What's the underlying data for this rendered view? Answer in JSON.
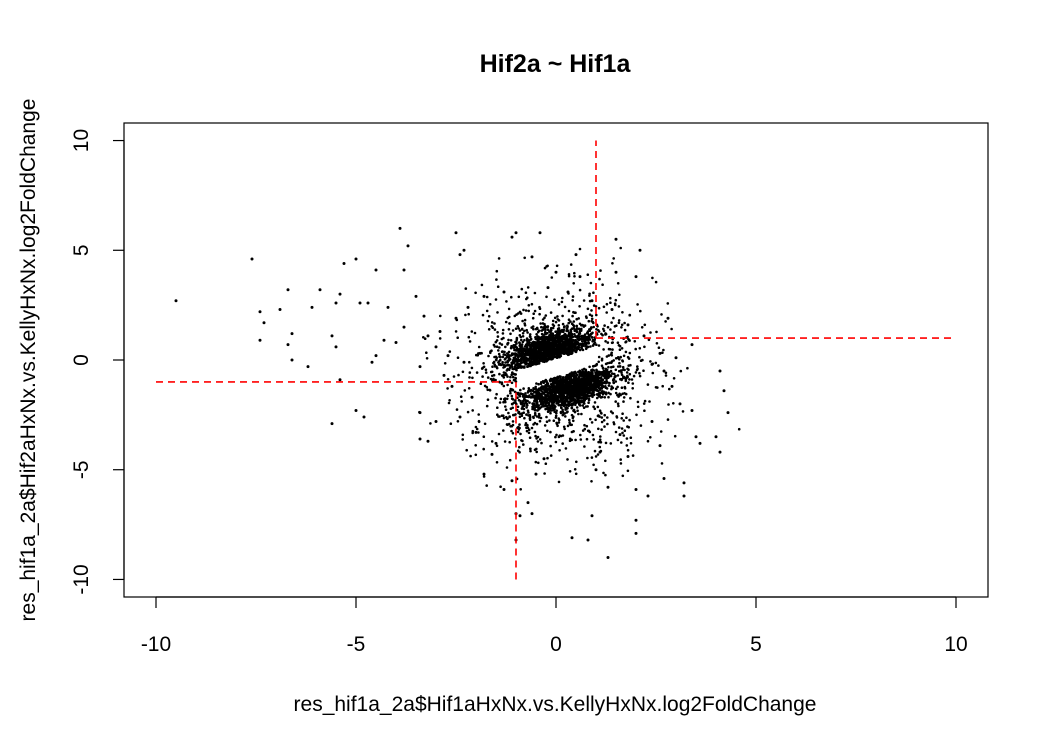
{
  "chart_data": {
    "type": "scatter",
    "title": "Hif2a ~ Hif1a",
    "xlabel": "res_hif1a_2a$Hif1aHxNx.vs.KellyHxNx.log2FoldChange",
    "ylabel": "res_hif1a_2a$Hif2aHxNx.vs.KellyHxNx.log2FoldChange",
    "xlim": [
      -10.8,
      10.8
    ],
    "ylim": [
      -10.8,
      10.8
    ],
    "x_ticks": [
      {
        "value": -10,
        "label": "-10"
      },
      {
        "value": -5,
        "label": "-5"
      },
      {
        "value": 0,
        "label": "0"
      },
      {
        "value": 5,
        "label": "5"
      },
      {
        "value": 10,
        "label": "10"
      }
    ],
    "y_ticks": [
      {
        "value": -10,
        "label": "-10"
      },
      {
        "value": -5,
        "label": "-5"
      },
      {
        "value": 0,
        "label": "0"
      },
      {
        "value": 5,
        "label": "5"
      },
      {
        "value": 10,
        "label": "10"
      }
    ],
    "grid": false,
    "point_color": "#000000",
    "reference_line_color": "#ff0000",
    "reference_lines": [
      {
        "name": "hline-upper",
        "orientation": "horizontal",
        "value": 1,
        "from": 1,
        "to": 10
      },
      {
        "name": "hline-lower",
        "orientation": "horizontal",
        "value": -1,
        "from": -10,
        "to": -1
      },
      {
        "name": "vline-right",
        "orientation": "vertical",
        "value": 1,
        "from": 1,
        "to": 10
      },
      {
        "name": "vline-left",
        "orientation": "vertical",
        "value": -1,
        "from": -10,
        "to": -1
      }
    ],
    "clusters": [
      {
        "name": "upper-band",
        "n": 1400,
        "cx": -0.2,
        "cy": 0.5,
        "sx": 0.55,
        "sy": 0.4,
        "slope": 0.5
      },
      {
        "name": "lower-band",
        "n": 1400,
        "cx": 0.35,
        "cy": -1.3,
        "sx": 0.55,
        "sy": 0.4,
        "slope": 0.5
      },
      {
        "name": "wide-cloud",
        "n": 1200,
        "cx": 0.1,
        "cy": -0.6,
        "sx": 1.2,
        "sy": 1.9,
        "slope": 0
      }
    ],
    "points": [
      {
        "x": -9.5,
        "y": 2.7
      },
      {
        "x": -7.6,
        "y": 4.6
      },
      {
        "x": -7.4,
        "y": 2.2
      },
      {
        "x": -7.3,
        "y": 1.7
      },
      {
        "x": -7.4,
        "y": 0.9
      },
      {
        "x": -6.9,
        "y": 2.3
      },
      {
        "x": -6.7,
        "y": 3.2
      },
      {
        "x": -6.6,
        "y": 1.2
      },
      {
        "x": -6.7,
        "y": 0.7
      },
      {
        "x": -6.6,
        "y": 0.0
      },
      {
        "x": -6.2,
        "y": -0.3
      },
      {
        "x": -6.1,
        "y": 2.4
      },
      {
        "x": -5.9,
        "y": 3.2
      },
      {
        "x": -5.5,
        "y": 2.6
      },
      {
        "x": -5.4,
        "y": 3.0
      },
      {
        "x": -5.3,
        "y": 4.4
      },
      {
        "x": -5.0,
        "y": 4.6
      },
      {
        "x": -4.9,
        "y": 2.6
      },
      {
        "x": -4.7,
        "y": 2.6
      },
      {
        "x": -4.5,
        "y": 4.1
      },
      {
        "x": -4.3,
        "y": 0.9
      },
      {
        "x": -4.5,
        "y": 0.2
      },
      {
        "x": -4.6,
        "y": -0.1
      },
      {
        "x": -5.6,
        "y": 1.1
      },
      {
        "x": -5.5,
        "y": 0.6
      },
      {
        "x": -5.0,
        "y": -2.3
      },
      {
        "x": -5.6,
        "y": -2.9
      },
      {
        "x": -4.8,
        "y": -2.6
      },
      {
        "x": -5.4,
        "y": -0.9
      },
      {
        "x": -4.2,
        "y": 2.4
      },
      {
        "x": -3.9,
        "y": 6.0
      },
      {
        "x": -3.7,
        "y": 5.2
      },
      {
        "x": -3.8,
        "y": 4.1
      },
      {
        "x": -3.5,
        "y": 2.9
      },
      {
        "x": -3.3,
        "y": 2.0
      },
      {
        "x": -3.4,
        "y": -2.4
      },
      {
        "x": -3.4,
        "y": -3.6
      },
      {
        "x": -3.2,
        "y": -3.7
      },
      {
        "x": -3.0,
        "y": -2.8
      },
      {
        "x": -2.5,
        "y": 5.8
      },
      {
        "x": -2.4,
        "y": 4.8
      },
      {
        "x": -2.3,
        "y": 5.0
      },
      {
        "x": -1.1,
        "y": 5.6
      },
      {
        "x": -1.0,
        "y": 5.8
      },
      {
        "x": -0.4,
        "y": 5.8
      },
      {
        "x": -0.6,
        "y": 4.7
      },
      {
        "x": 0.0,
        "y": 4.0
      },
      {
        "x": 0.5,
        "y": 4.8
      },
      {
        "x": 0.6,
        "y": 3.8
      },
      {
        "x": 1.5,
        "y": 5.5
      },
      {
        "x": 2.1,
        "y": 5.0
      },
      {
        "x": 1.5,
        "y": 4.0
      },
      {
        "x": 2.0,
        "y": 3.8
      },
      {
        "x": 2.4,
        "y": -0.2
      },
      {
        "x": 2.6,
        "y": 0.3
      },
      {
        "x": 2.7,
        "y": -0.5
      },
      {
        "x": 2.9,
        "y": -1.2
      },
      {
        "x": 3.1,
        "y": -2.0
      },
      {
        "x": 3.4,
        "y": -2.3
      },
      {
        "x": 3.5,
        "y": -3.5
      },
      {
        "x": 3.6,
        "y": -3.8
      },
      {
        "x": 4.0,
        "y": -3.5
      },
      {
        "x": 4.1,
        "y": -4.2
      },
      {
        "x": 4.1,
        "y": -0.5
      },
      {
        "x": 4.3,
        "y": -2.4
      },
      {
        "x": 4.2,
        "y": -1.4
      },
      {
        "x": 3.2,
        "y": -5.6
      },
      {
        "x": 3.2,
        "y": -6.2
      },
      {
        "x": 2.7,
        "y": -5.4
      },
      {
        "x": 2.3,
        "y": -6.2
      },
      {
        "x": 2.0,
        "y": -5.9
      },
      {
        "x": 2.0,
        "y": -7.3
      },
      {
        "x": 2.0,
        "y": -7.9
      },
      {
        "x": 1.8,
        "y": -4.4
      },
      {
        "x": 1.3,
        "y": -5.8
      },
      {
        "x": 1.3,
        "y": -9.0
      },
      {
        "x": 0.9,
        "y": -7.1
      },
      {
        "x": 0.8,
        "y": -8.2
      },
      {
        "x": 0.4,
        "y": -8.1
      },
      {
        "x": 1.0,
        "y": -5.0
      },
      {
        "x": -0.5,
        "y": -5.2
      },
      {
        "x": -0.7,
        "y": -6.5
      },
      {
        "x": -0.6,
        "y": -7.0
      },
      {
        "x": -0.9,
        "y": -7.1
      },
      {
        "x": -1.0,
        "y": -7.0
      },
      {
        "x": -1.0,
        "y": -8.2
      },
      {
        "x": -1.1,
        "y": -5.5
      },
      {
        "x": -1.3,
        "y": -5.9
      },
      {
        "x": -1.6,
        "y": -4.3
      },
      {
        "x": -1.8,
        "y": -5.2
      },
      {
        "x": -2.0,
        "y": -3.3
      },
      {
        "x": -2.1,
        "y": -1.7
      },
      {
        "x": -2.6,
        "y": -1.2
      },
      {
        "x": -2.8,
        "y": -0.7
      },
      {
        "x": -3.0,
        "y": 0.6
      },
      {
        "x": -3.4,
        "y": -0.3
      },
      {
        "x": -2.9,
        "y": 1.3
      },
      {
        "x": -2.5,
        "y": 1.9
      },
      {
        "x": -2.2,
        "y": 2.4
      },
      {
        "x": -1.8,
        "y": 2.9
      },
      {
        "x": -1.3,
        "y": 3.1
      },
      {
        "x": -3.8,
        "y": 1.5
      },
      {
        "x": -4.0,
        "y": 0.8
      },
      {
        "x": -3.2,
        "y": 1.1
      },
      {
        "x": -2.7,
        "y": 0.2
      },
      {
        "x": -2.3,
        "y": -0.1
      },
      {
        "x": -1.9,
        "y": 0.3
      },
      {
        "x": -0.2,
        "y": 3.3
      },
      {
        "x": 0.3,
        "y": 3.1
      },
      {
        "x": 0.9,
        "y": 2.7
      },
      {
        "x": 1.4,
        "y": 2.3
      },
      {
        "x": 1.8,
        "y": 1.6
      },
      {
        "x": 2.2,
        "y": 1.1
      },
      {
        "x": 1.6,
        "y": -3.4
      },
      {
        "x": 2.4,
        "y": -2.8
      },
      {
        "x": 2.6,
        "y": -3.9
      },
      {
        "x": 1.1,
        "y": -4.2
      },
      {
        "x": -0.3,
        "y": -4.5
      },
      {
        "x": -1.5,
        "y": -3.8
      },
      {
        "x": -2.4,
        "y": -2.6
      },
      {
        "x": 3.4,
        "y": 0.7
      },
      {
        "x": 3.0,
        "y": 0.1
      },
      {
        "x": 2.8,
        "y": 1.9
      }
    ]
  }
}
